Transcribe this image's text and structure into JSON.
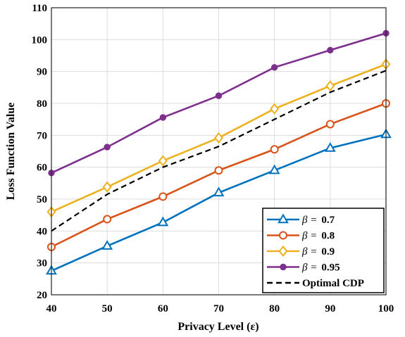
{
  "chart_data": {
    "type": "line",
    "title": "",
    "xlabel": "Privacy Level (ε)",
    "ylabel": "Loss Function Value",
    "x": [
      40,
      50,
      60,
      70,
      80,
      90,
      100
    ],
    "xlim": [
      40,
      100
    ],
    "ylim": [
      20,
      110
    ],
    "xticks": [
      "40",
      "50",
      "60",
      "70",
      "80",
      "90",
      "100"
    ],
    "yticks": [
      "20",
      "30",
      "40",
      "50",
      "60",
      "70",
      "80",
      "90",
      "100",
      "110"
    ],
    "grid": true,
    "legend_position": "bottom-right",
    "series": [
      {
        "name": "β = 0.7",
        "legend_prefix": "β =",
        "legend_value": "0.7",
        "color": "#0072BD",
        "marker": "triangle",
        "dashed": false,
        "values": [
          27.5,
          35.3,
          42.7,
          52.0,
          59.0,
          66.0,
          70.3
        ]
      },
      {
        "name": "β = 0.8",
        "legend_prefix": "β =",
        "legend_value": "0.8",
        "color": "#D95319",
        "marker": "circle-open",
        "dashed": false,
        "values": [
          35.0,
          43.7,
          50.8,
          59.0,
          65.6,
          73.5,
          80.0
        ]
      },
      {
        "name": "β = 0.9",
        "legend_prefix": "β =",
        "legend_value": "0.9",
        "color": "#EDB120",
        "marker": "diamond",
        "dashed": false,
        "values": [
          46.0,
          53.8,
          62.0,
          69.2,
          78.3,
          85.5,
          92.3
        ]
      },
      {
        "name": "β = 0.95",
        "legend_prefix": "β =",
        "legend_value": "0.95",
        "color": "#7E2F8E",
        "marker": "circle-filled",
        "dashed": false,
        "values": [
          58.2,
          66.3,
          75.6,
          82.4,
          91.3,
          96.7,
          102.0
        ]
      },
      {
        "name": "Optimal CDP",
        "legend_prefix": "",
        "legend_value": "Optimal CDP",
        "color": "#000000",
        "marker": "none",
        "dashed": true,
        "values": [
          40.0,
          51.5,
          60.0,
          66.5,
          75.0,
          83.5,
          90.3
        ]
      }
    ]
  }
}
